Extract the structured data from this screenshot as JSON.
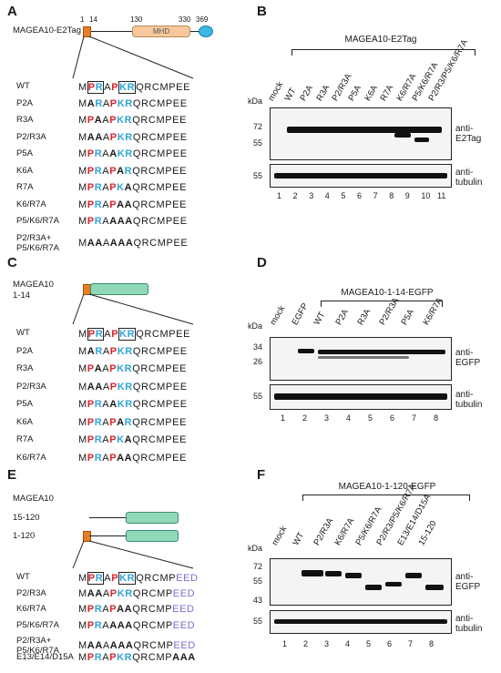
{
  "panels": {
    "A": {
      "label": "A",
      "construct": "MAGEA10-E2Tag",
      "positions": [
        "1",
        "14",
        "130",
        "330",
        "369"
      ],
      "domain": "MHD",
      "rows": [
        {
          "name": "WT",
          "seq": "MPRAPKRQRCMPEE"
        },
        {
          "name": "P2A",
          "seq": "MARAPKRQRCMPEE"
        },
        {
          "name": "R3A",
          "seq": "MPAAPKRQRCMPEE"
        },
        {
          "name": "P2/R3A",
          "seq": "MAAAPKRQRCMPEE"
        },
        {
          "name": "P5A",
          "seq": "MPRAAKRQRCMPEE"
        },
        {
          "name": "K6A",
          "seq": "MPRAPARQRCMPEE"
        },
        {
          "name": "R7A",
          "seq": "MPRAPKAQRCMPEE"
        },
        {
          "name": "K6/R7A",
          "seq": "MPRAPAAQRCMPEE"
        },
        {
          "name": "P5/K6/R7A",
          "seq": "MPRAAAAQRCMPEE"
        },
        {
          "name": "P2/R3A+ P5/K6/R7A",
          "seq": "MAAAAAAQRCMPEE"
        }
      ]
    },
    "B": {
      "label": "B",
      "bracket": "MAGEA10-E2Tag",
      "lanes": [
        "mock",
        "WT",
        "P2A",
        "R3A",
        "P2/R3A",
        "P5A",
        "K6A",
        "R7A",
        "K6/R7A",
        "P5/K6/R7A",
        "P2/R3/P5/K6/R7A"
      ],
      "lane_numbers": [
        "1",
        "2",
        "3",
        "4",
        "5",
        "6",
        "7",
        "8",
        "9",
        "10",
        "11"
      ],
      "kda": "kDa",
      "top_markers": [
        "72",
        "55"
      ],
      "bottom_markers": [
        "55"
      ],
      "top_label": "anti-\nE2Tag",
      "bottom_label": "anti-\ntubulin"
    },
    "C": {
      "label": "C",
      "construct_line1": "MAGEA10",
      "construct_line2": "1-14",
      "rows": [
        {
          "name": "WT",
          "seq": "MPRAPKRQRCMPEE"
        },
        {
          "name": "P2A",
          "seq": "MARAPKRQRCMPEE"
        },
        {
          "name": "R3A",
          "seq": "MPAAPKRQRCMPEE"
        },
        {
          "name": "P2/R3A",
          "seq": "MAAAPKRQRCMPEE"
        },
        {
          "name": "P5A",
          "seq": "MPRAAKRQRCMPEE"
        },
        {
          "name": "K6A",
          "seq": "MPRAPARQRCMPEE"
        },
        {
          "name": "R7A",
          "seq": "MPRAPKAQRCMPEE"
        },
        {
          "name": "K6/R7A",
          "seq": "MPRAPAAQRCMPEE"
        }
      ]
    },
    "D": {
      "label": "D",
      "bracket": "MAGEA10-1-14-EGFP",
      "lanes": [
        "mock",
        "EGFP",
        "WT",
        "P2A",
        "R3A",
        "P2/R3A",
        "P5A",
        "K6/R7A"
      ],
      "lane_numbers": [
        "1",
        "2",
        "3",
        "4",
        "5",
        "6",
        "7",
        "8"
      ],
      "kda": "kDa",
      "top_markers": [
        "34",
        "26"
      ],
      "bottom_markers": [
        "55"
      ],
      "top_label": "anti-\nEGFP",
      "bottom_label": "anti-\ntubulin"
    },
    "E": {
      "label": "E",
      "construct_title": "MAGEA10",
      "constructs": [
        "15-120",
        "1-120"
      ],
      "rows": [
        {
          "name": "WT",
          "seq": "MPRAPKRQRCMPEED"
        },
        {
          "name": "P2/R3A",
          "seq": "MAAAPKRQRCMPEED"
        },
        {
          "name": "K6/R7A",
          "seq": "MPRAPAAQRCMPEED"
        },
        {
          "name": "P5/K6/R7A",
          "seq": "MPRAAAAQRCMPEED"
        },
        {
          "name": "P2/R3A+ P5/K6/R7A",
          "seq": "MAAAAAAQRCMPEED"
        },
        {
          "name": "E13/E14/D15A",
          "seq": "MPRAPKRQRCMPAAA"
        }
      ]
    },
    "F": {
      "label": "F",
      "bracket": "MAGEA10-1-120-EGFP",
      "lanes": [
        "mock",
        "WT",
        "P2/R3A",
        "K6/R7A",
        "P5/K6/R7A",
        "P2/R3/P5/K6/R7A",
        "E13/E14/D15A",
        "15-120"
      ],
      "lane_numbers": [
        "1",
        "2",
        "3",
        "4",
        "5",
        "6",
        "7",
        "8"
      ],
      "kda": "kDa",
      "top_markers": [
        "72",
        "55",
        "43"
      ],
      "bottom_markers": [
        "55"
      ],
      "top_label": "anti-\nEGFP",
      "bottom_label": "anti-\ntubulin"
    }
  },
  "colors": {
    "mutated": "#e0232c",
    "basic": "#2fa4d8",
    "acidic": "#7a6ed0",
    "mhd_fill": "#f7c99a",
    "egfp_fill": "#8fd9b8",
    "start_box": "#e67e22",
    "end_oval": "#3cb6e3"
  }
}
